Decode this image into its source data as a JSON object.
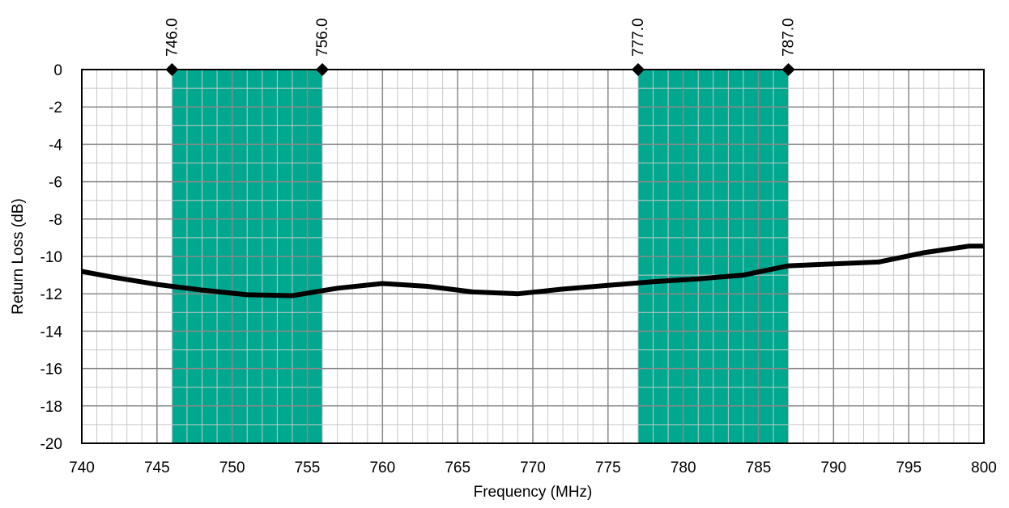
{
  "chart_data": {
    "type": "line",
    "xlabel": "Frequency (MHz)",
    "ylabel": "Return Loss (dB)",
    "xlim": [
      740,
      800
    ],
    "ylim": [
      -20,
      0
    ],
    "x_ticks": [
      740,
      745,
      750,
      755,
      760,
      765,
      770,
      775,
      780,
      785,
      790,
      795,
      800
    ],
    "y_ticks": [
      0,
      -2,
      -4,
      -6,
      -8,
      -10,
      -12,
      -14,
      -16,
      -18,
      -20
    ],
    "x_minor_step": 1,
    "y_minor_step": 1,
    "grid": true,
    "band_color": "#00A88F",
    "line_color": "#000000",
    "bands": [
      {
        "start": 746.0,
        "end": 756.0
      },
      {
        "start": 777.0,
        "end": 787.0
      }
    ],
    "markers": [
      {
        "x": 746.0,
        "label": "746.0"
      },
      {
        "x": 756.0,
        "label": "756.0"
      },
      {
        "x": 777.0,
        "label": "777.0"
      },
      {
        "x": 787.0,
        "label": "787.0"
      }
    ],
    "series": [
      {
        "x": [
          740,
          742,
          745,
          748,
          751,
          754,
          757,
          760,
          763,
          766,
          769,
          772,
          775,
          778,
          781,
          784,
          787,
          790,
          793,
          796,
          799,
          800
        ],
        "y": [
          -10.8,
          -11.1,
          -11.5,
          -11.8,
          -12.05,
          -12.1,
          -11.7,
          -11.45,
          -11.6,
          -11.9,
          -12.0,
          -11.75,
          -11.55,
          -11.35,
          -11.2,
          -11.0,
          -10.5,
          -10.4,
          -10.3,
          -9.8,
          -9.45,
          -9.45
        ]
      }
    ]
  }
}
